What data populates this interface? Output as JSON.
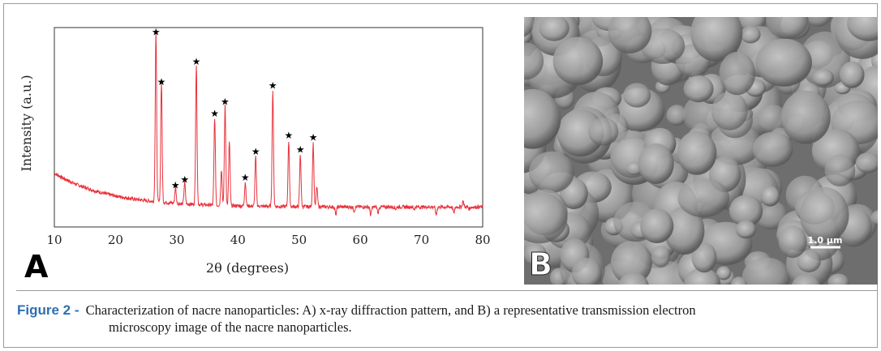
{
  "figure": {
    "label": "Figure 2 -",
    "caption_line1": "Characterization of nacre nanoparticles: A) x-ray diffraction pattern, and B) a representative transmission electron",
    "caption_line2": "microscopy image of the nacre nanoparticles."
  },
  "panel_a": {
    "letter": "A"
  },
  "panel_b": {
    "letter": "B",
    "scale_bar_label": "1.0 µm"
  },
  "chart_data": {
    "type": "line",
    "title": "",
    "xlabel": "2θ (degrees)",
    "ylabel": "Intensity (a.u.)",
    "xlim": [
      10,
      80
    ],
    "ylim": [
      0,
      100
    ],
    "x_ticks": [
      10,
      20,
      30,
      40,
      50,
      60,
      70,
      80
    ],
    "line_color": "#e8323c",
    "marker": "★",
    "grid": false,
    "peaks": [
      {
        "x": 26.6,
        "y": 95,
        "starred": true
      },
      {
        "x": 27.5,
        "y": 70,
        "starred": true
      },
      {
        "x": 29.8,
        "y": 18,
        "starred": true
      },
      {
        "x": 31.3,
        "y": 21,
        "starred": true
      },
      {
        "x": 33.2,
        "y": 80,
        "starred": true
      },
      {
        "x": 36.2,
        "y": 54,
        "starred": true
      },
      {
        "x": 37.3,
        "y": 28,
        "starred": false
      },
      {
        "x": 37.9,
        "y": 60,
        "starred": true
      },
      {
        "x": 38.6,
        "y": 42,
        "starred": false
      },
      {
        "x": 41.2,
        "y": 22,
        "starred": true
      },
      {
        "x": 42.9,
        "y": 35,
        "starred": true
      },
      {
        "x": 45.7,
        "y": 68,
        "starred": true
      },
      {
        "x": 48.3,
        "y": 43,
        "starred": true
      },
      {
        "x": 50.2,
        "y": 36,
        "starred": true
      },
      {
        "x": 52.3,
        "y": 42,
        "starred": true
      },
      {
        "x": 52.9,
        "y": 20,
        "starred": false
      },
      {
        "x": 56.0,
        "y": 6,
        "starred": false
      },
      {
        "x": 59.0,
        "y": 8,
        "starred": false
      },
      {
        "x": 61.7,
        "y": 6,
        "starred": false
      },
      {
        "x": 62.9,
        "y": 7,
        "starred": false
      },
      {
        "x": 65.8,
        "y": 9,
        "starred": false
      },
      {
        "x": 68.8,
        "y": 9,
        "starred": false
      },
      {
        "x": 72.4,
        "y": 6,
        "starred": false
      },
      {
        "x": 75.3,
        "y": 7,
        "starred": false
      },
      {
        "x": 76.8,
        "y": 13,
        "starred": false
      },
      {
        "x": 77.8,
        "y": 9,
        "starred": false
      },
      {
        "x": 79.4,
        "y": 10,
        "starred": false
      }
    ]
  }
}
